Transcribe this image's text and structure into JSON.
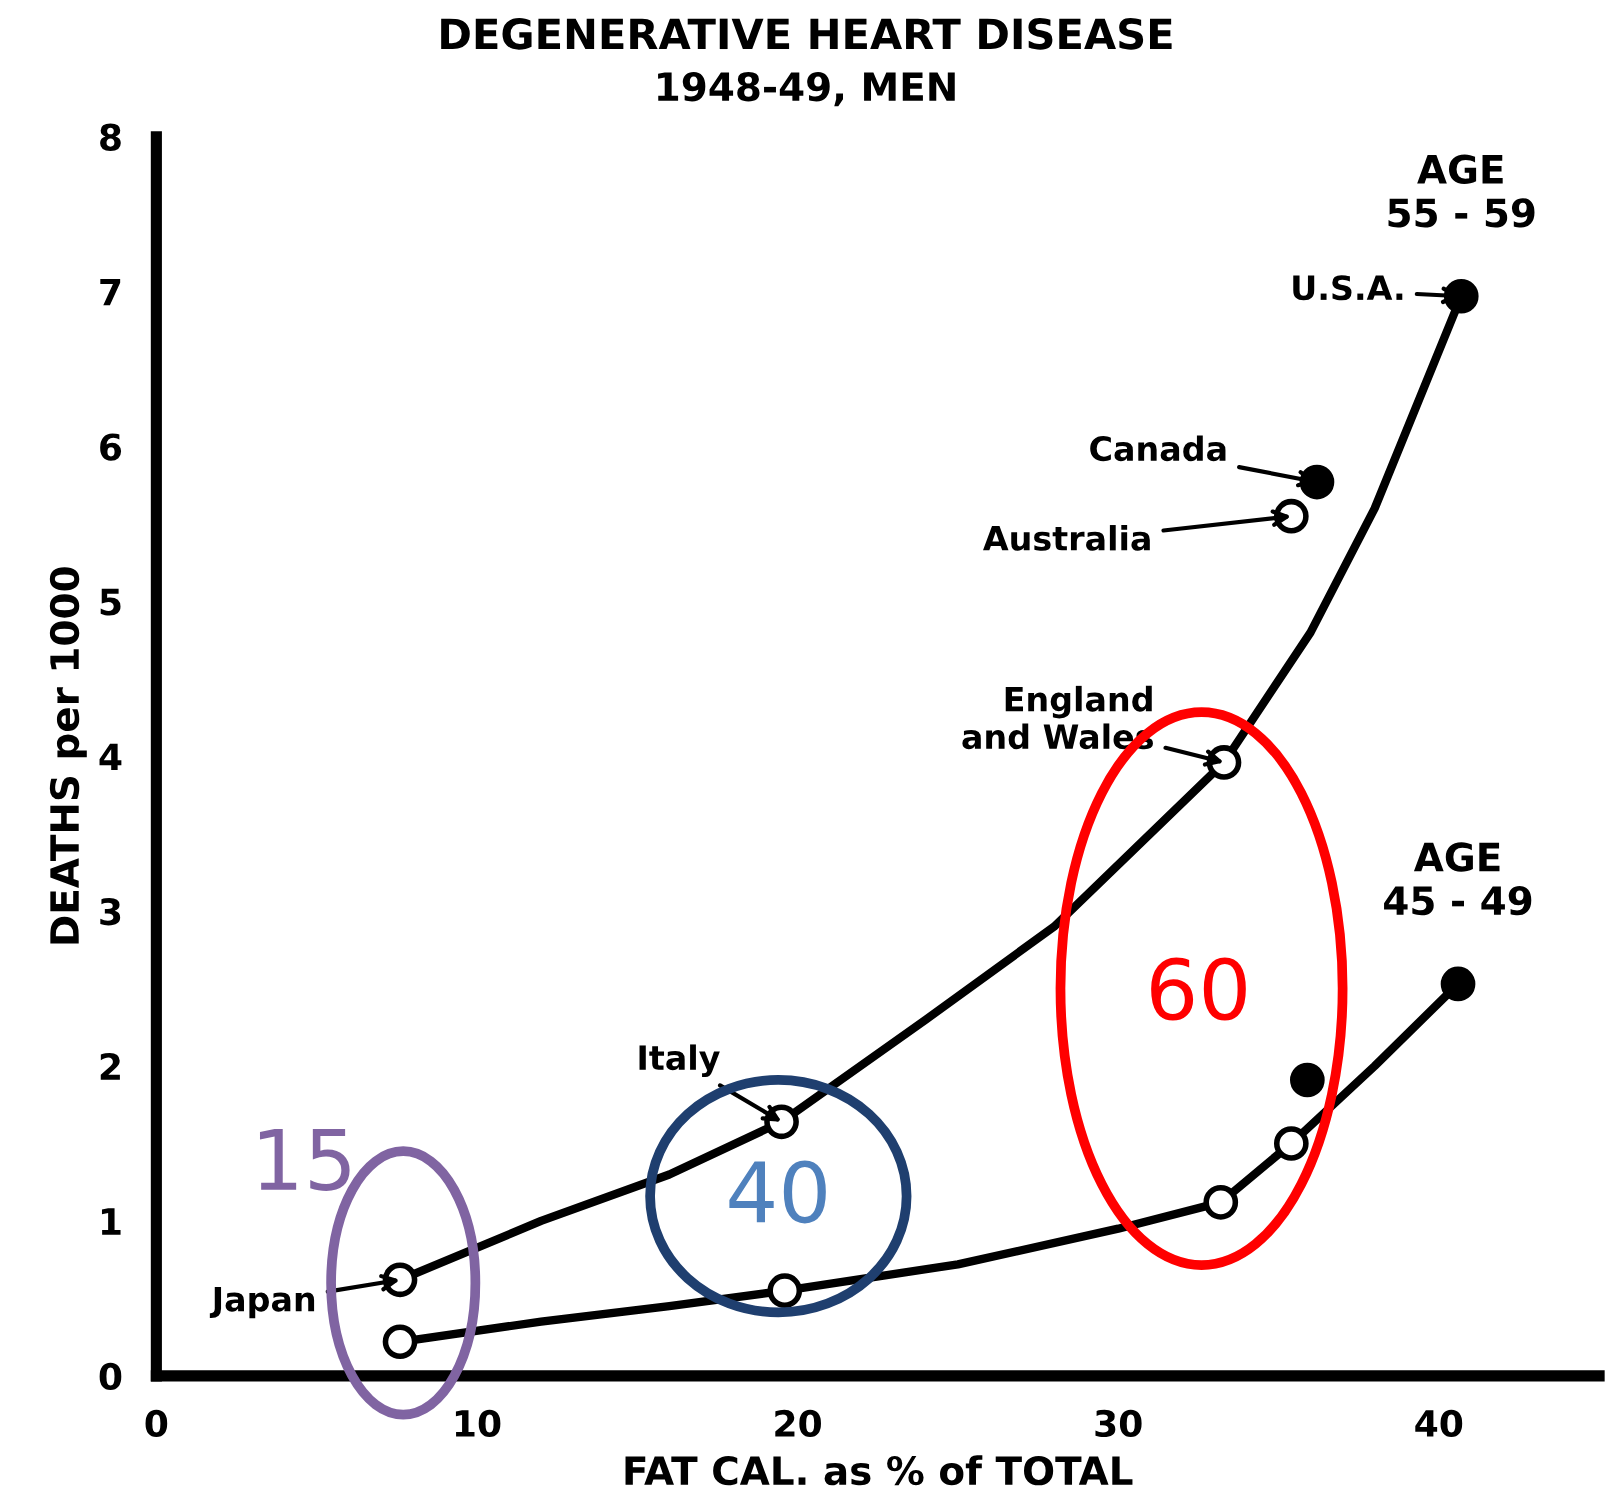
{
  "chart_data": {
    "type": "scatter",
    "title": "DEGENERATIVE HEART DISEASE",
    "subtitle": "1948-49, MEN",
    "xlabel": "FAT CAL. as % of TOTAL",
    "ylabel": "DEATHS per 1000",
    "xlim": [
      0,
      45
    ],
    "ylim": [
      0,
      8
    ],
    "xticks": [
      0,
      10,
      20,
      30,
      40
    ],
    "yticks": [
      0,
      1,
      2,
      3,
      4,
      5,
      6,
      7,
      8
    ],
    "grid": false,
    "legend": false,
    "series": [
      {
        "type": "line",
        "marker": "none",
        "color": "#000000",
        "line_style": "solid",
        "x": [
          7.6,
          12,
          16,
          19.5,
          24,
          28,
          33.3,
          36,
          38,
          40.7
        ],
        "values": [
          0.62,
          1.0,
          1.3,
          1.64,
          2.3,
          2.9,
          3.96,
          4.8,
          5.6,
          6.97
        ]
      },
      {
        "type": "line",
        "marker": "none",
        "color": "#000000",
        "line_style": "solid",
        "x": [
          7.6,
          12,
          16,
          19.6,
          25,
          30,
          33.2,
          35.4,
          38,
          40.6
        ],
        "values": [
          0.22,
          0.35,
          0.45,
          0.55,
          0.72,
          0.95,
          1.12,
          1.5,
          2.0,
          2.53
        ]
      },
      {
        "marker": "circle",
        "name": "AGE\n55 - 59",
        "color": "#000000",
        "x": [
          7.6,
          19.5,
          33.3,
          35.4,
          36.2,
          40.7
        ],
        "values": [
          0.62,
          1.64,
          3.96,
          5.55,
          5.77,
          6.97
        ],
        "colors": [
          "#ffffff",
          "#ffffff",
          "#ffffff",
          "#ffffff",
          "#000000",
          "#000000"
        ]
      },
      {
        "marker": "circle",
        "name": "AGE\n45 - 49",
        "color": "#000000",
        "x": [
          7.6,
          19.6,
          33.2,
          35.4,
          35.9,
          40.6
        ],
        "values": [
          0.22,
          0.55,
          1.12,
          1.5,
          1.91,
          2.53
        ],
        "colors": [
          "#ffffff",
          "#ffffff",
          "#ffffff",
          "#ffffff",
          "#000000",
          "#000000"
        ]
      }
    ],
    "annotations": [
      {
        "text": "U.S.A.",
        "x": 40.7,
        "y": 6.97
      },
      {
        "text": "Canada",
        "x": 36.2,
        "y": 5.77
      },
      {
        "text": "Australia",
        "x": 35.4,
        "y": 5.55
      },
      {
        "text": "England\nand Wales",
        "x": 33.3,
        "y": 3.96
      },
      {
        "text": "Italy",
        "x": 19.5,
        "y": 1.64
      },
      {
        "text": "Japan",
        "x": 7.6,
        "y": 0.62
      },
      "15",
      "40",
      "60"
    ]
  }
}
